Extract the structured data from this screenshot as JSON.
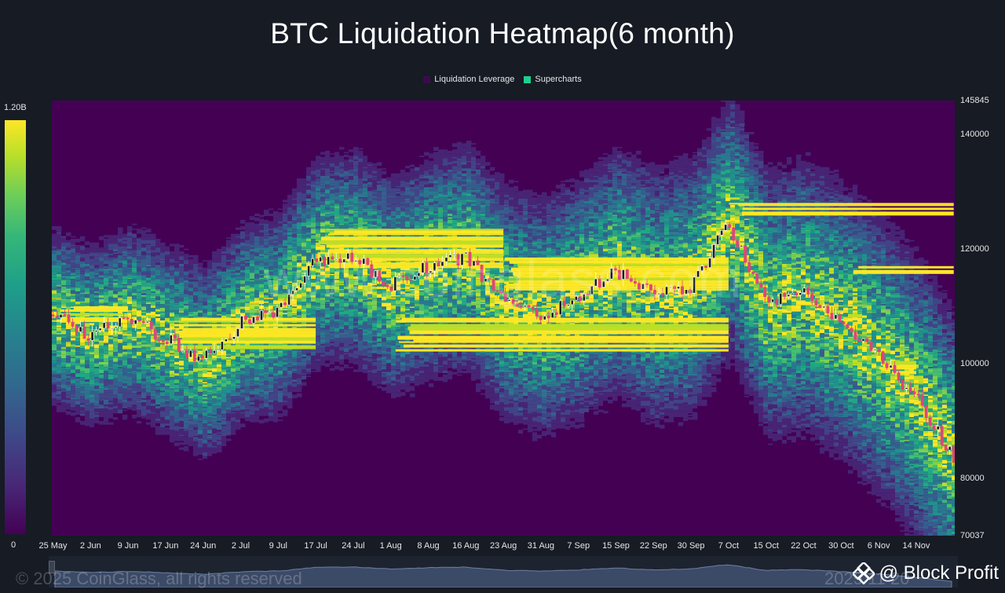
{
  "chart_data": {
    "type": "heatmap",
    "title": "BTC Liquidation Heatmap(6 month)",
    "legend": [
      {
        "name": "Liquidation Leverage",
        "color": "#3b0a4e"
      },
      {
        "name": "Supercharts",
        "color": "#1fcf8f"
      }
    ],
    "legend_position": "top-center",
    "colorbar": {
      "min_label": "0",
      "max_label": "1.20B",
      "min": 0,
      "max": 1200000000
    },
    "y_ticks": [
      "145845",
      "140000",
      "120000",
      "100000",
      "80000",
      "70037"
    ],
    "y_tick_values": [
      145845,
      140000,
      120000,
      100000,
      80000,
      70037
    ],
    "ylim": [
      70037,
      145845
    ],
    "x_ticks": [
      "25 May",
      "2 Jun",
      "9 Jun",
      "17 Jun",
      "24 Jun",
      "2 Jul",
      "9 Jul",
      "17 Jul",
      "24 Jul",
      "1 Aug",
      "8 Aug",
      "16 Aug",
      "23 Aug",
      "31 Aug",
      "7 Sep",
      "15 Sep",
      "22 Sep",
      "30 Sep",
      "7 Oct",
      "15 Oct",
      "22 Oct",
      "30 Oct",
      "6 Nov",
      "14 Nov"
    ],
    "price_series": {
      "name": "BTC price",
      "x_index": [
        0,
        1,
        2,
        3,
        4,
        5,
        6,
        7,
        8,
        9,
        10,
        11,
        12,
        13,
        14,
        15,
        16,
        17,
        18,
        19,
        20,
        21,
        22,
        23,
        24
      ],
      "close": [
        108500,
        105000,
        108000,
        104500,
        100500,
        107000,
        109000,
        118000,
        118500,
        113500,
        117000,
        118500,
        111000,
        108500,
        111500,
        116000,
        112000,
        113500,
        124500,
        110500,
        112000,
        107500,
        101500,
        94000,
        83500
      ]
    },
    "high_density_bands": [
      {
        "from_index": 0,
        "to_index": 2,
        "low": 107000,
        "high": 110000
      },
      {
        "from_index": 3,
        "to_index": 7,
        "low": 103000,
        "high": 108000
      },
      {
        "from_index": 7,
        "to_index": 12,
        "low": 117000,
        "high": 123500
      },
      {
        "from_index": 9,
        "to_index": 18,
        "low": 102500,
        "high": 108000
      },
      {
        "from_index": 12,
        "to_index": 18,
        "low": 113000,
        "high": 118500
      },
      {
        "from_index": 18,
        "to_index": 24,
        "low": 126000,
        "high": 128000
      },
      {
        "from_index": 21,
        "to_index": 24,
        "low": 116000,
        "high": 117000
      },
      {
        "from_index": 22,
        "to_index": 23,
        "low": 98500,
        "high": 100500
      }
    ]
  },
  "watermark": "www.coinglass.com",
  "footer": {
    "copyright": "© 2025 CoinGlass, all rights reserved",
    "right_partial": "2025 11 20",
    "brand": "@ Block Profit"
  }
}
